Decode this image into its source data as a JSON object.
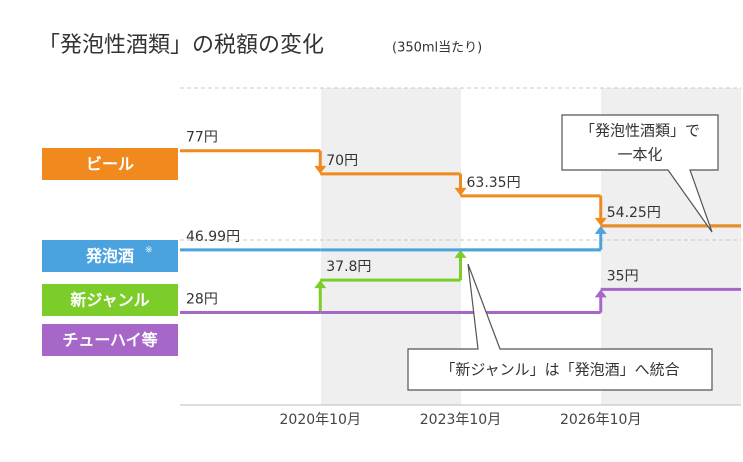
{
  "chart_data": {
    "type": "step",
    "title": "「発泡性酒類」の税額の変化",
    "subtitle": "(350ml当たり)",
    "categories": [
      null,
      "2020年10月",
      "2023年10月",
      "2026年10月"
    ],
    "ylim": [
      0,
      96
    ],
    "series": [
      {
        "name": "ビール",
        "color": "#f08a1e",
        "values": [
          77,
          70,
          63.35,
          54.25
        ],
        "value_labels": [
          "77円",
          "70円",
          "63.35円",
          "54.25円"
        ]
      },
      {
        "name": "発泡酒",
        "footnote_mark": "※",
        "color": "#4aa3df",
        "values": [
          46.99,
          46.99,
          46.99,
          54.25
        ],
        "value_labels": [
          "46.99円",
          null,
          null,
          null
        ]
      },
      {
        "name": "新ジャンル",
        "color": "#7ccd2a",
        "values": [
          28,
          37.8,
          46.99,
          null
        ],
        "value_labels": [
          "28円",
          "37.8円",
          null,
          null
        ]
      },
      {
        "name": "チューハイ等",
        "color": "#a667c9",
        "values": [
          28,
          28,
          28,
          35
        ],
        "value_labels": [
          null,
          null,
          null,
          "35円"
        ]
      }
    ],
    "annotations": [
      {
        "lines": [
          "「発泡性酒類」で",
          "一本化"
        ]
      },
      {
        "lines": [
          "「新ジャンル」は「発泡酒」へ統合"
        ]
      }
    ]
  }
}
